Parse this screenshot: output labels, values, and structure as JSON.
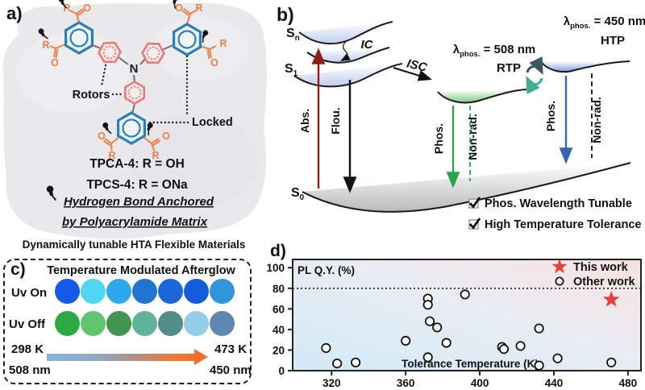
{
  "panel_a": {
    "label": "a)",
    "atom_n": "N",
    "r_label": "R",
    "o_label": "O",
    "rotors_label": "Rotors",
    "locked_label": "Locked",
    "compound_1": "TPCA-4: R = OH",
    "compound_2": "TPCS-4: R = ONa",
    "anchor_line_1": "Hydrogen Bond Anchored",
    "anchor_line_2": "by Polyacrylamide Matrix",
    "caption": "Dynamically tunable HTA Flexible Materials",
    "colors": {
      "rotor_ring": "#e97b76",
      "locked_ring": "#2b7fb3",
      "carboxyl": "#ee7e43",
      "pin": "#141414",
      "matrix_bg": "#e9e9ec"
    }
  },
  "panel_b": {
    "label": "b)",
    "states": {
      "sn": {
        "sym": "S",
        "sub": "n"
      },
      "s1": {
        "sym": "S",
        "sub": "1"
      },
      "s0": {
        "sym": "S",
        "sub": "0"
      }
    },
    "ic_label": "IC",
    "isc_label": "ISC",
    "abs_label": "Abs.",
    "flou_label": "Flou.",
    "phos_label": "Phos.",
    "nonrad_label": "Non-rad.",
    "lambda_rtp": {
      "sym": "λ",
      "sub": "phos.",
      "rest": " = 508 nm"
    },
    "lambda_htp": {
      "sym": "λ",
      "sub": "phos.",
      "rest": " = 450 nm"
    },
    "rtp_label": "RTP",
    "htp_label": "HTP",
    "check_1": "Phos. Wavelength Tunable",
    "check_2": "High Temperature Tolerance",
    "colors": {
      "abs": "#8f1d1d",
      "flou": "#111111",
      "phos_rtp": "#2ca44a",
      "phos_htp": "#3465b0",
      "swap_dark": "#3b5862",
      "swap_green": "#3fae8c"
    }
  },
  "panel_c": {
    "label": "c)",
    "title": "Temperature Modulated Afterglow",
    "row_on_label": "Uv On",
    "row_off_label": "Uv Off",
    "uv_on_colors": [
      "#155ae8",
      "#4dd7f3",
      "#2ea7ec",
      "#2076cf",
      "#1b66d9",
      "#155cdc",
      "#2f96dd"
    ],
    "uv_off_colors": [
      "#2ca945",
      "#63c46e",
      "#41934f",
      "#61b29a",
      "#528c86",
      "#92cdea",
      "#6086b2"
    ],
    "temp_left": "298 K",
    "temp_right": "473 K",
    "wl_left": "508 nm",
    "wl_right": "450 nm"
  },
  "panel_d": {
    "label": "d)",
    "chart_data": {
      "type": "scatter",
      "ylabel": "PL Q.Y. (%)",
      "xlabel": "Tolerance Temperature (K)",
      "x_ticks": [
        320,
        360,
        400,
        440,
        480
      ],
      "y_ticks": [
        0,
        20,
        40,
        60,
        80,
        100
      ],
      "xlim": [
        299,
        487
      ],
      "ylim": [
        0,
        108
      ],
      "grid": false,
      "threshold_line_y": 80,
      "legend_position": "top-right",
      "legend": [
        {
          "label": "This work",
          "marker": "star",
          "color": "#e8403c"
        },
        {
          "label": "Other work",
          "marker": "open-circle",
          "color": "#111111"
        }
      ],
      "series": [
        {
          "name": "This work",
          "marker": "star",
          "color": "#e8403c",
          "points": [
            [
              471,
              69
            ]
          ]
        },
        {
          "name": "Other work",
          "marker": "open-circle",
          "color": "#111111",
          "points": [
            [
              317,
              22
            ],
            [
              323,
              7
            ],
            [
              333,
              8
            ],
            [
              360,
              29
            ],
            [
              372,
              70
            ],
            [
              372,
              64
            ],
            [
              373,
              48
            ],
            [
              372,
              13
            ],
            [
              377,
              42
            ],
            [
              382,
              27
            ],
            [
              392,
              74
            ],
            [
              412,
              23
            ],
            [
              413,
              21
            ],
            [
              422,
              24
            ],
            [
              432,
              41
            ],
            [
              432,
              5
            ],
            [
              442,
              12
            ],
            [
              471,
              8
            ]
          ]
        }
      ]
    }
  }
}
